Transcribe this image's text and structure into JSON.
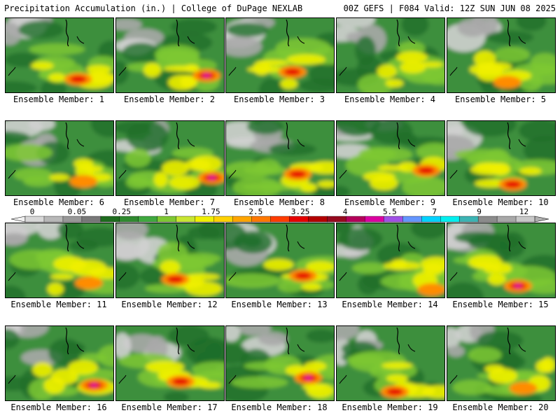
{
  "header": {
    "left": "Precipitation Accumulation (in.) | College of DuPage NEXLAB",
    "right": "00Z GEFS | F084 Valid: 12Z SUN JUN 08 2025"
  },
  "member_label_prefix": "Ensemble Member: ",
  "members": [
    {
      "id": "1",
      "peak": "red"
    },
    {
      "id": "2",
      "peak": "magenta"
    },
    {
      "id": "3",
      "peak": "red"
    },
    {
      "id": "4",
      "peak": "yellow"
    },
    {
      "id": "5",
      "peak": "orange"
    },
    {
      "id": "6",
      "peak": "orange"
    },
    {
      "id": "7",
      "peak": "magenta"
    },
    {
      "id": "8",
      "peak": "red"
    },
    {
      "id": "9",
      "peak": "red"
    },
    {
      "id": "10",
      "peak": "red"
    },
    {
      "id": "11",
      "peak": "orange"
    },
    {
      "id": "12",
      "peak": "red"
    },
    {
      "id": "13",
      "peak": "red"
    },
    {
      "id": "14",
      "peak": "orange"
    },
    {
      "id": "15",
      "peak": "magenta"
    },
    {
      "id": "16",
      "peak": "magenta"
    },
    {
      "id": "17",
      "peak": "red"
    },
    {
      "id": "18",
      "peak": "magenta"
    },
    {
      "id": "19",
      "peak": "red"
    },
    {
      "id": "20",
      "peak": "orange"
    }
  ],
  "colorbar": {
    "labels": [
      "0",
      "0.05",
      "0.25",
      "1",
      "1.75",
      "2.5",
      "3.25",
      "4",
      "5.5",
      "7",
      "9",
      "12"
    ],
    "colors": [
      "#d8d8d8",
      "#b8b8b8",
      "#989898",
      "#787878",
      "#1e6b1e",
      "#2f8a2f",
      "#3fa83f",
      "#7ec832",
      "#c8e632",
      "#f0f000",
      "#ffd200",
      "#ffa500",
      "#ff7800",
      "#ff3c00",
      "#e60000",
      "#b40000",
      "#960a1e",
      "#b4005a",
      "#dc00a0",
      "#a050e6",
      "#6496ff",
      "#00d2ff",
      "#00f0f0",
      "#3cb4b4",
      "#8c8c8c",
      "#a8a8a8",
      "#c8c8c8"
    ]
  }
}
